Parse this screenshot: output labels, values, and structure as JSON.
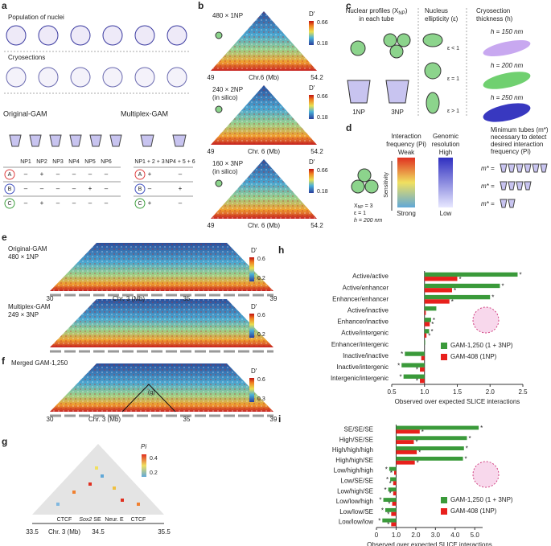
{
  "panels": {
    "a": {
      "letter": "a",
      "population": "Population of nuclei",
      "cryosections": "Cryosections",
      "original": "Original-GAM",
      "multiplex": "Multiplex-GAM",
      "orig_header": [
        "NP1",
        "NP2",
        "NP3",
        "NP4",
        "NP5",
        "NP6"
      ],
      "orig_rows": [
        [
          "–",
          "+",
          "–",
          "–",
          "–",
          "–"
        ],
        [
          "–",
          "–",
          "–",
          "–",
          "+",
          "–"
        ],
        [
          "–",
          "+",
          "–",
          "–",
          "–",
          "–"
        ]
      ],
      "multi_header": [
        "NP1 + 2 + 3",
        "NP4 + 5 + 6"
      ],
      "multi_rows": [
        [
          "+",
          "–"
        ],
        [
          "–",
          "+"
        ],
        [
          "+",
          "–"
        ]
      ],
      "row_names": [
        "A",
        "B",
        "C"
      ]
    },
    "b": {
      "letter": "b",
      "maps": [
        {
          "label": "480 × 1NP",
          "note": ""
        },
        {
          "label": "240 × 2NP",
          "note": "(in silico)"
        },
        {
          "label": "160 × 3NP",
          "note": "(in silico)"
        }
      ],
      "scale_title": "D′",
      "scale_max": "0.66",
      "scale_min": "0.18",
      "start": "49",
      "axis": "Chr.6 (Mb)",
      "axis2": "Chr. 6 (Mb)",
      "end": "54.2"
    },
    "c": {
      "letter": "c",
      "profiles": [
        "Nuclear profiles (X",
        "NP",
        ")",
        "in each tube"
      ],
      "tube1": "1NP",
      "tube3": "3NP",
      "ellipticity": [
        "Nucleus",
        "ellipticity (ε)"
      ],
      "eps": [
        "ε < 1",
        "ε = 1",
        "ε > 1"
      ],
      "thickness": [
        "Cryosection",
        "thickness (h)"
      ],
      "h": [
        "h = 150 nm",
        "h = 200 nm",
        "h = 250 nm"
      ]
    },
    "d": {
      "letter": "d",
      "params": [
        "X",
        "NP",
        " = 3",
        "ε = 1",
        "h = 200 nm"
      ],
      "sensitivity": "Sensitivity",
      "freq": [
        "Interaction",
        "frequency (Pi)"
      ],
      "weak": "Weak",
      "strong": "Strong",
      "res": [
        "Genomic",
        "resolution"
      ],
      "high": "High",
      "low": "Low",
      "min": [
        "Minimum tubes (m*)",
        "necessary to detect",
        "desired interaction",
        "frequency (Pi)"
      ],
      "m": "m* ="
    },
    "e": {
      "letter": "e",
      "orig": "Original-GAM",
      "orig_n": "480 × 1NP",
      "multi": "Multiplex-GAM",
      "multi_n": "249 × 3NP",
      "scale_title": "D′",
      "scale_max": "0.6",
      "scale_min": "0.2",
      "start": "30",
      "axis": "Chr. 3 (Mb)",
      "mid": "35",
      "end": "39"
    },
    "f": {
      "letter": "f",
      "title": "Merged GAM-1,250",
      "scale_title": "D′",
      "scale_max": "0.6",
      "scale_min": "0.3",
      "box": "(g)",
      "start": "30",
      "axis": "Chr. 3 (Mb)",
      "mid": "35",
      "end": "39"
    },
    "g": {
      "letter": "g",
      "scale_title": "Pi",
      "scale_max": "0.4",
      "scale_min": "0.2",
      "features": [
        "CTCF",
        "Sox2",
        " SE",
        "Neur. E",
        "CTCF"
      ],
      "start": "33.5",
      "axis": "Chr. 3 (Mb)",
      "mid": "34.5",
      "end": "35.5"
    },
    "h": {
      "letter": "h"
    },
    "i": {
      "letter": "i"
    }
  },
  "chart_data": [
    {
      "type": "hbar",
      "xlabel": "Observed over expected SLICE interactions",
      "baseline": 1,
      "star": "*",
      "categories": [
        "Active/active",
        "Active/enhancer",
        "Enhancer/enhancer",
        "Active/inactive",
        "Enhancer/inactive",
        "Active/intergenic",
        "Enhancer/intergenic",
        "Inactive/inactive",
        "Inactive/intergenic",
        "Intergenic/intergenic"
      ],
      "series": [
        {
          "name": "GAM-1,250 (1 + 3NP)",
          "color": "#3a9a3a",
          "values": [
            2.42,
            2.15,
            2.0,
            1.18,
            1.1,
            1.07,
            1.01,
            0.7,
            0.65,
            0.68
          ],
          "significant": [
            true,
            true,
            true,
            false,
            true,
            true,
            false,
            true,
            true,
            true
          ]
        },
        {
          "name": "GAM-408 (1NP)",
          "color": "#e8201c",
          "values": [
            1.5,
            1.42,
            1.38,
            1.02,
            1.08,
            1.03,
            1.0,
            0.95,
            0.93,
            0.93
          ],
          "significant": [
            true,
            true,
            true,
            false,
            true,
            true,
            false,
            false,
            true,
            true
          ]
        }
      ],
      "xlim": [
        0.5,
        2.5
      ],
      "xticks": [
        0.5,
        {
          "value": 1,
          "label": "1.0"
        },
        1.5,
        {
          "value": 2,
          "label": "2.0"
        },
        2.5
      ]
    },
    {
      "type": "hbar",
      "xlabel": "Observed over expected SLICE interactions",
      "baseline": 1,
      "star": "*",
      "categories": [
        "SE/SE/SE",
        "High/SE/SE",
        "High/high/high",
        "High/high/SE",
        "Low/high/high",
        "Low/SE/SE",
        "Low/high/SE",
        "Low/low/high",
        "Low/low/SE",
        "Low/low/low"
      ],
      "series": [
        {
          "name": "GAM-1,250 (1 + 3NP)",
          "color": "#3a9a3a",
          "values": [
            5.2,
            4.6,
            4.45,
            4.4,
            0.65,
            0.7,
            0.6,
            0.35,
            0.45,
            0.3
          ],
          "significant": [
            true,
            true,
            true,
            true,
            true,
            true,
            true,
            true,
            true,
            true
          ]
        },
        {
          "name": "GAM-408 (1NP)",
          "color": "#e8201c",
          "values": [
            2.2,
            1.9,
            2.05,
            1.95,
            0.9,
            0.85,
            0.85,
            0.8,
            0.75,
            0.75
          ],
          "significant": [
            true,
            true,
            true,
            true,
            true,
            true,
            true,
            true,
            true,
            true
          ]
        }
      ],
      "xlim": [
        0,
        5.4
      ],
      "xticks": [
        0,
        {
          "value": 1,
          "label": "1.0"
        },
        {
          "value": 2,
          "label": "2.0"
        },
        {
          "value": 3,
          "label": "3.0"
        },
        {
          "value": 4,
          "label": "4.0"
        },
        {
          "value": 5,
          "label": "5.0"
        }
      ]
    }
  ]
}
